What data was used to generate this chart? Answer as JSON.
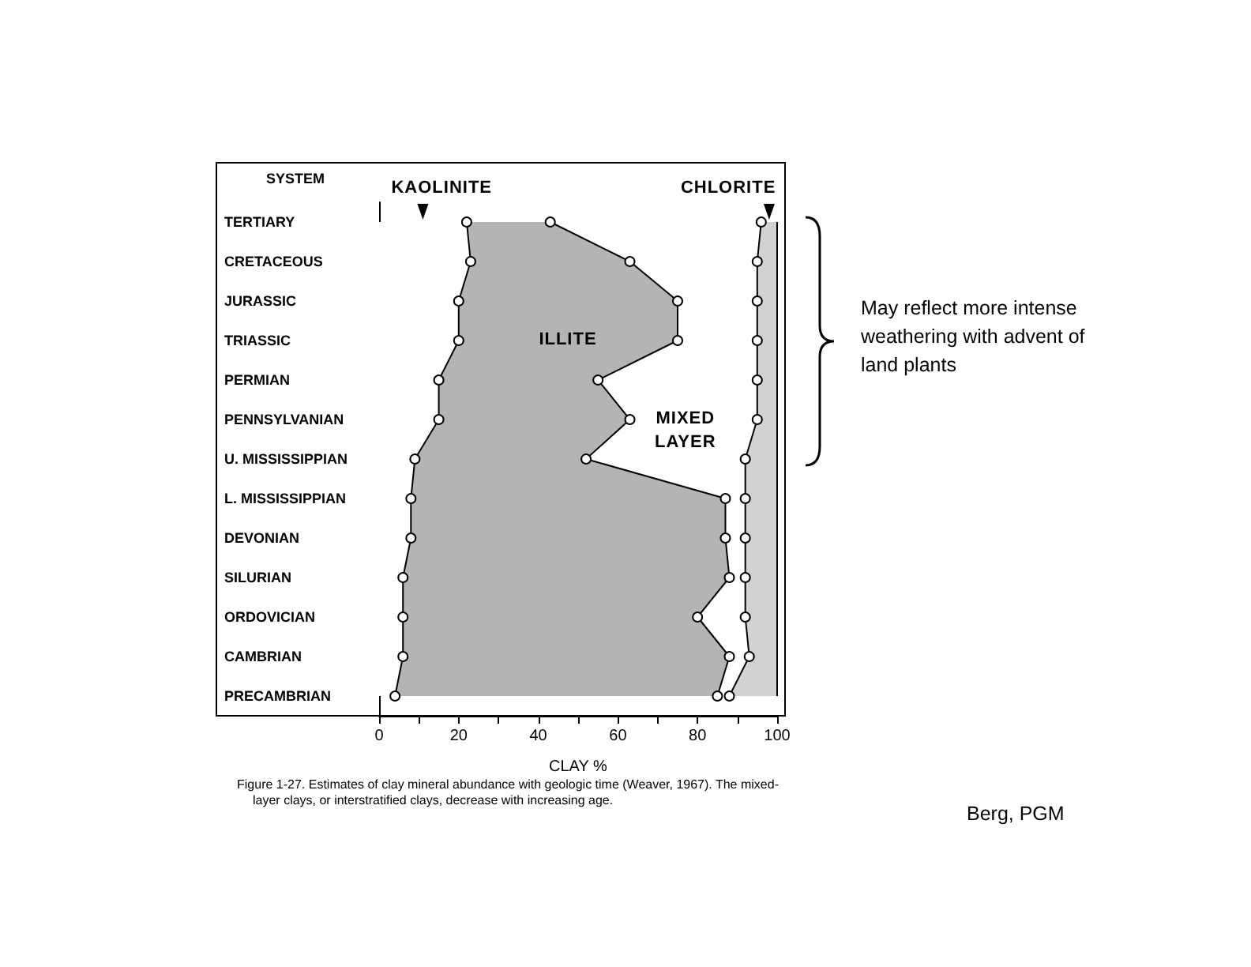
{
  "chart_data": {
    "type": "area",
    "orientation": "horizontal",
    "stacked": true,
    "ylabel": "SYSTEM",
    "xlabel": "CLAY %",
    "categories": [
      "TERTIARY",
      "CRETACEOUS",
      "JURASSIC",
      "TRIASSIC",
      "PERMIAN",
      "PENNSYLVANIAN",
      "U. MISSISSIPPIAN",
      "L. MISSISSIPPIAN",
      "DEVONIAN",
      "SILURIAN",
      "ORDOVICIAN",
      "CAMBRIAN",
      "PRECAMBRIAN"
    ],
    "series": [
      {
        "name": "KAOLINITE",
        "color": "#ffffff",
        "values": [
          22,
          23,
          20,
          20,
          15,
          15,
          9,
          8,
          8,
          6,
          6,
          6,
          4
        ]
      },
      {
        "name": "ILLITE",
        "color": "#b4b4b4",
        "values": [
          21,
          40,
          55,
          55,
          40,
          48,
          43,
          79,
          79,
          82,
          74,
          82,
          81
        ]
      },
      {
        "name": "MIXED LAYER",
        "color": "#ffffff",
        "values": [
          53,
          32,
          20,
          20,
          40,
          32,
          40,
          5,
          5,
          4,
          12,
          5,
          3
        ]
      },
      {
        "name": "CHLORITE",
        "color": "#d2d2d2",
        "marker": "none",
        "values": [
          4,
          5,
          5,
          5,
          5,
          5,
          8,
          8,
          8,
          8,
          8,
          7,
          12
        ]
      }
    ],
    "xlim": [
      0,
      100
    ],
    "xticks": [
      0,
      {
        "value": 10,
        "label": null
      },
      20,
      {
        "value": 30,
        "label": null
      },
      40,
      {
        "value": 50,
        "label": null
      },
      60,
      {
        "value": 70,
        "label": null
      },
      80,
      {
        "value": 90,
        "label": null
      },
      100
    ],
    "marker": "circle",
    "grid": false,
    "annotations": [
      "May reflect more intense weathering with advent of land plants",
      "Figure 1-27.  Estimates of clay mineral abundance with geologic time (Weaver, 1967).  The mixed-layer clays, or interstratified clays, decrease with increasing age.",
      "Berg, PGM"
    ]
  }
}
